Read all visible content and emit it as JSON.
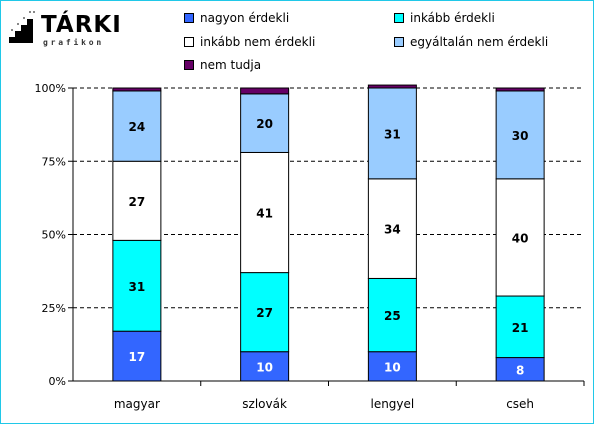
{
  "logo": {
    "name": "TÁRKI",
    "subtitle": "grafikon"
  },
  "chart_data": {
    "type": "bar",
    "stacked": true,
    "categories": [
      "magyar",
      "szlovák",
      "lengyel",
      "cseh"
    ],
    "series": [
      {
        "name": "nagyon érdekli",
        "color": "#3366ff",
        "values": [
          17,
          10,
          10,
          8
        ]
      },
      {
        "name": "inkább érdekli",
        "color": "#00ffff",
        "values": [
          31,
          27,
          25,
          21
        ]
      },
      {
        "name": "inkább nem érdekli",
        "color": "#ffffff",
        "values": [
          27,
          41,
          34,
          40
        ]
      },
      {
        "name": "egyáltalán nem érdekli",
        "color": "#99ccff",
        "values": [
          24,
          20,
          31,
          30
        ]
      },
      {
        "name": "nem tudja",
        "color": "#660066",
        "values": [
          1,
          2,
          1,
          1
        ]
      }
    ],
    "value_labels_shown_for_series": [
      "nagyon érdekli",
      "inkább érdekli",
      "inkább nem érdekli",
      "egyáltalán nem érdekli"
    ],
    "y_ticks": [
      "0%",
      "25%",
      "50%",
      "75%",
      "100%"
    ],
    "ylim": [
      0,
      100
    ],
    "grid": "horizontal dashed",
    "legend_position": "top"
  }
}
